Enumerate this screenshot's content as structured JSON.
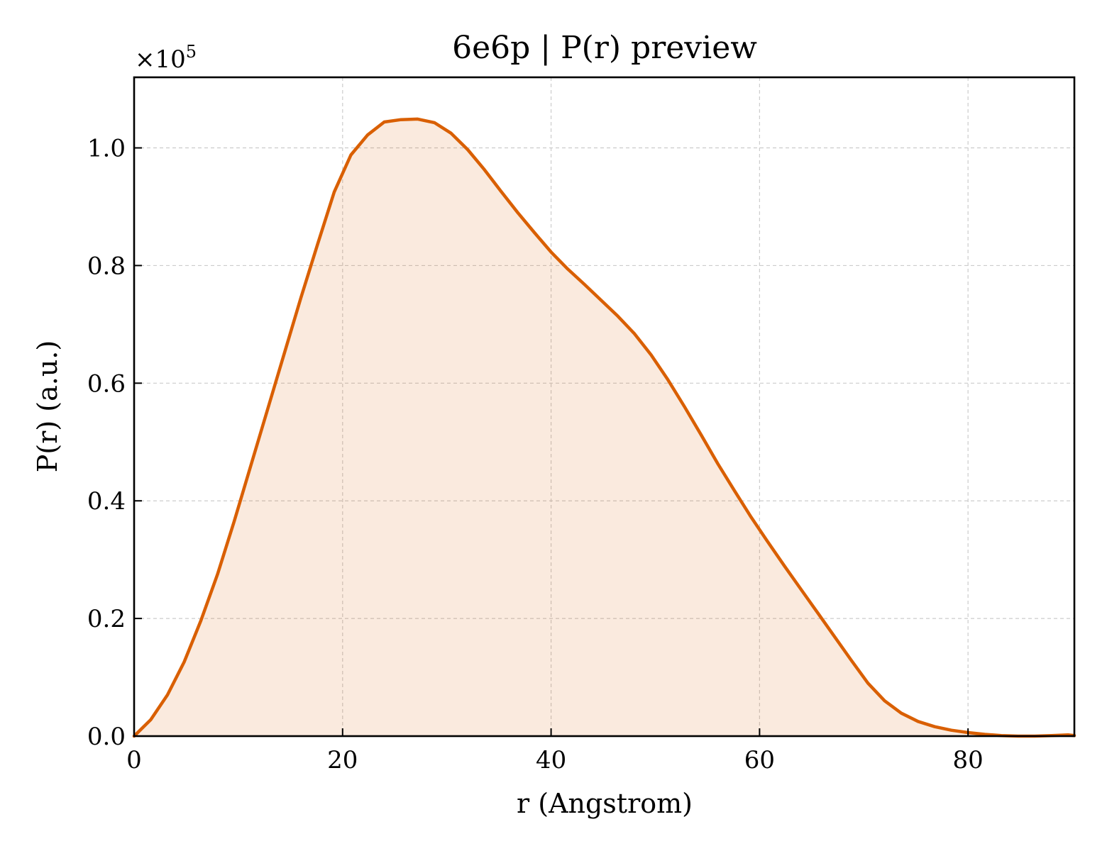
{
  "chart_data": {
    "type": "area",
    "title": "6e6p | P(r) preview",
    "xlabel": "r (Angstrom)",
    "ylabel": "P(r) (a.u.)",
    "y_offset_text": "×10",
    "y_offset_exponent": "5",
    "y_scale": 100000,
    "xlim": [
      0,
      90.2
    ],
    "ylim": [
      0,
      112000
    ],
    "xticks": [
      0,
      20,
      40,
      60,
      80
    ],
    "xtick_labels": [
      "0",
      "20",
      "40",
      "60",
      "80"
    ],
    "yticks": [
      0,
      20000,
      40000,
      60000,
      80000,
      100000
    ],
    "ytick_labels": [
      "0.0",
      "0.2",
      "0.4",
      "0.6",
      "0.8",
      "1.0"
    ],
    "grid": true,
    "ticks_direction": "in",
    "colors": {
      "line": "#d95f02",
      "fill": "#d95f02",
      "fill_opacity": 0.13,
      "grid": "#cccccc"
    },
    "series": [
      {
        "x": [
          0,
          1.6,
          3.2,
          4.8,
          6.4,
          8.0,
          9.6,
          11.2,
          12.8,
          14.4,
          16.0,
          17.6,
          19.2,
          20.8,
          22.4,
          24.0,
          25.6,
          27.2,
          28.8,
          30.4,
          32.0,
          33.6,
          35.2,
          36.8,
          38.4,
          40.0,
          41.6,
          43.2,
          44.8,
          46.4,
          48.0,
          49.6,
          51.2,
          52.8,
          54.4,
          56.0,
          57.6,
          59.2,
          60.8,
          62.4,
          64.0,
          65.6,
          67.2,
          68.8,
          70.4,
          72.0,
          73.6,
          75.2,
          76.8,
          78.4,
          80.0,
          81.6,
          83.2,
          84.8,
          86.4,
          88.0,
          89.6,
          90.2
        ],
        "y": [
          0,
          2800,
          7000,
          12600,
          19600,
          27500,
          36500,
          46000,
          55500,
          65000,
          74500,
          83600,
          92500,
          98800,
          102200,
          104400,
          104800,
          104900,
          104300,
          102500,
          99700,
          96300,
          92600,
          89000,
          85600,
          82300,
          79400,
          76800,
          74100,
          71400,
          68400,
          64800,
          60600,
          56000,
          51200,
          46300,
          41700,
          37200,
          33000,
          28900,
          24900,
          20900,
          16900,
          12900,
          9000,
          6000,
          3900,
          2500,
          1600,
          1000,
          600,
          300,
          100,
          0,
          0,
          100,
          200,
          100
        ]
      }
    ]
  }
}
